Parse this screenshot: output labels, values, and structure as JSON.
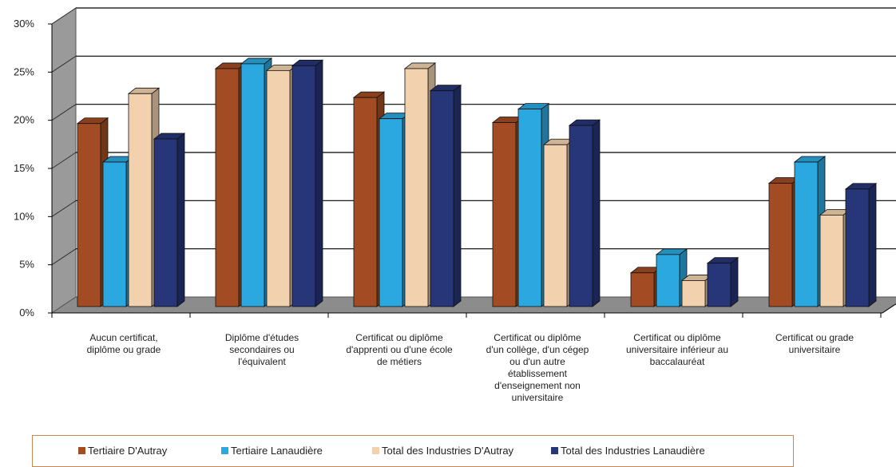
{
  "chart_data": {
    "type": "bar",
    "title": "",
    "xlabel": "",
    "ylabel": "",
    "ylim": [
      0,
      30
    ],
    "y_ticks": [
      "0%",
      "5%",
      "10%",
      "15%",
      "20%",
      "25%",
      "30%"
    ],
    "grid": true,
    "legend_position": "bottom",
    "style": "3d-clustered-columns",
    "categories": [
      "Aucun certificat,\ndiplôme ou grade",
      "Diplôme d'études\nsecondaires ou\nl'équivalent",
      "Certificat ou diplôme\nd'apprenti ou d'une école\nde métiers",
      "Certificat ou diplôme\nd'un collège, d'un cégep\nou d'un autre\nétablissement\nd'enseignement non\nuniversitaire",
      "Certificat ou diplôme\nuniversitaire inférieur au\nbaccalauréat",
      "Certificat ou grade\nuniversitaire"
    ],
    "series": [
      {
        "name": "Tertiaire D'Autray",
        "color": "#a34b22",
        "values": [
          19,
          24.7,
          21.7,
          19.1,
          3.5,
          12.8
        ]
      },
      {
        "name": "Tertiaire Lanaudière",
        "color": "#2ba8e0",
        "values": [
          15,
          25.2,
          19.5,
          20.5,
          5.4,
          15
        ]
      },
      {
        "name": "Total des Industries D'Autray",
        "color": "#f2d2ae",
        "values": [
          22.1,
          24.5,
          24.7,
          16.8,
          2.7,
          9.5
        ]
      },
      {
        "name": "Total des Industries Lanaudière",
        "color": "#273579",
        "values": [
          17.4,
          25,
          22.4,
          18.8,
          4.5,
          12.2
        ]
      }
    ]
  }
}
